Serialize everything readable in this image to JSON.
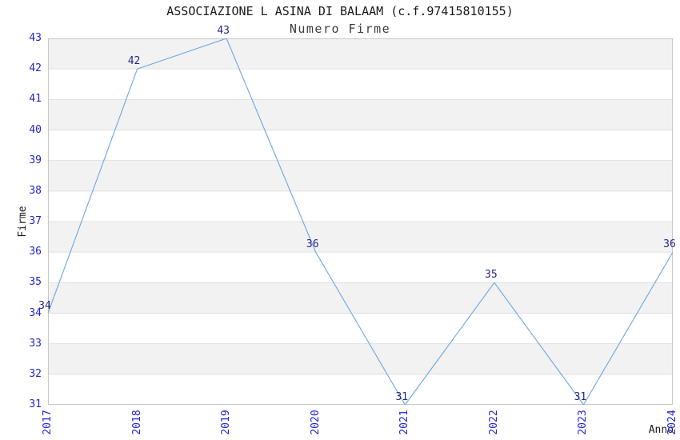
{
  "chart_data": {
    "type": "line",
    "title": "ASSOCIAZIONE L ASINA DI BALAAM (c.f.97415810155)",
    "subtitle": "Numero Firme",
    "xlabel": "Anno",
    "ylabel": "Firme",
    "x": [
      "2017",
      "2018",
      "2019",
      "2020",
      "2021",
      "2022",
      "2023",
      "2024"
    ],
    "values": [
      34,
      42,
      43,
      36,
      31,
      35,
      31,
      36
    ],
    "point_labels": [
      "34",
      "42",
      "43",
      "36",
      "31",
      "35",
      "31",
      "36"
    ],
    "ylim": [
      31,
      43
    ],
    "yticks": [
      31,
      32,
      33,
      34,
      35,
      36,
      37,
      38,
      39,
      40,
      41,
      42,
      43
    ],
    "grid": "horizontal",
    "alternating_bands": true,
    "legend": "none",
    "colors": {
      "line": "#76ACE3",
      "point_label": "#262687",
      "tick_label": "#2424CC",
      "band": "#F2F2F2",
      "grid": "#E0E0E0",
      "border": "#C8C8C8",
      "background": "#FFFFFF"
    }
  }
}
